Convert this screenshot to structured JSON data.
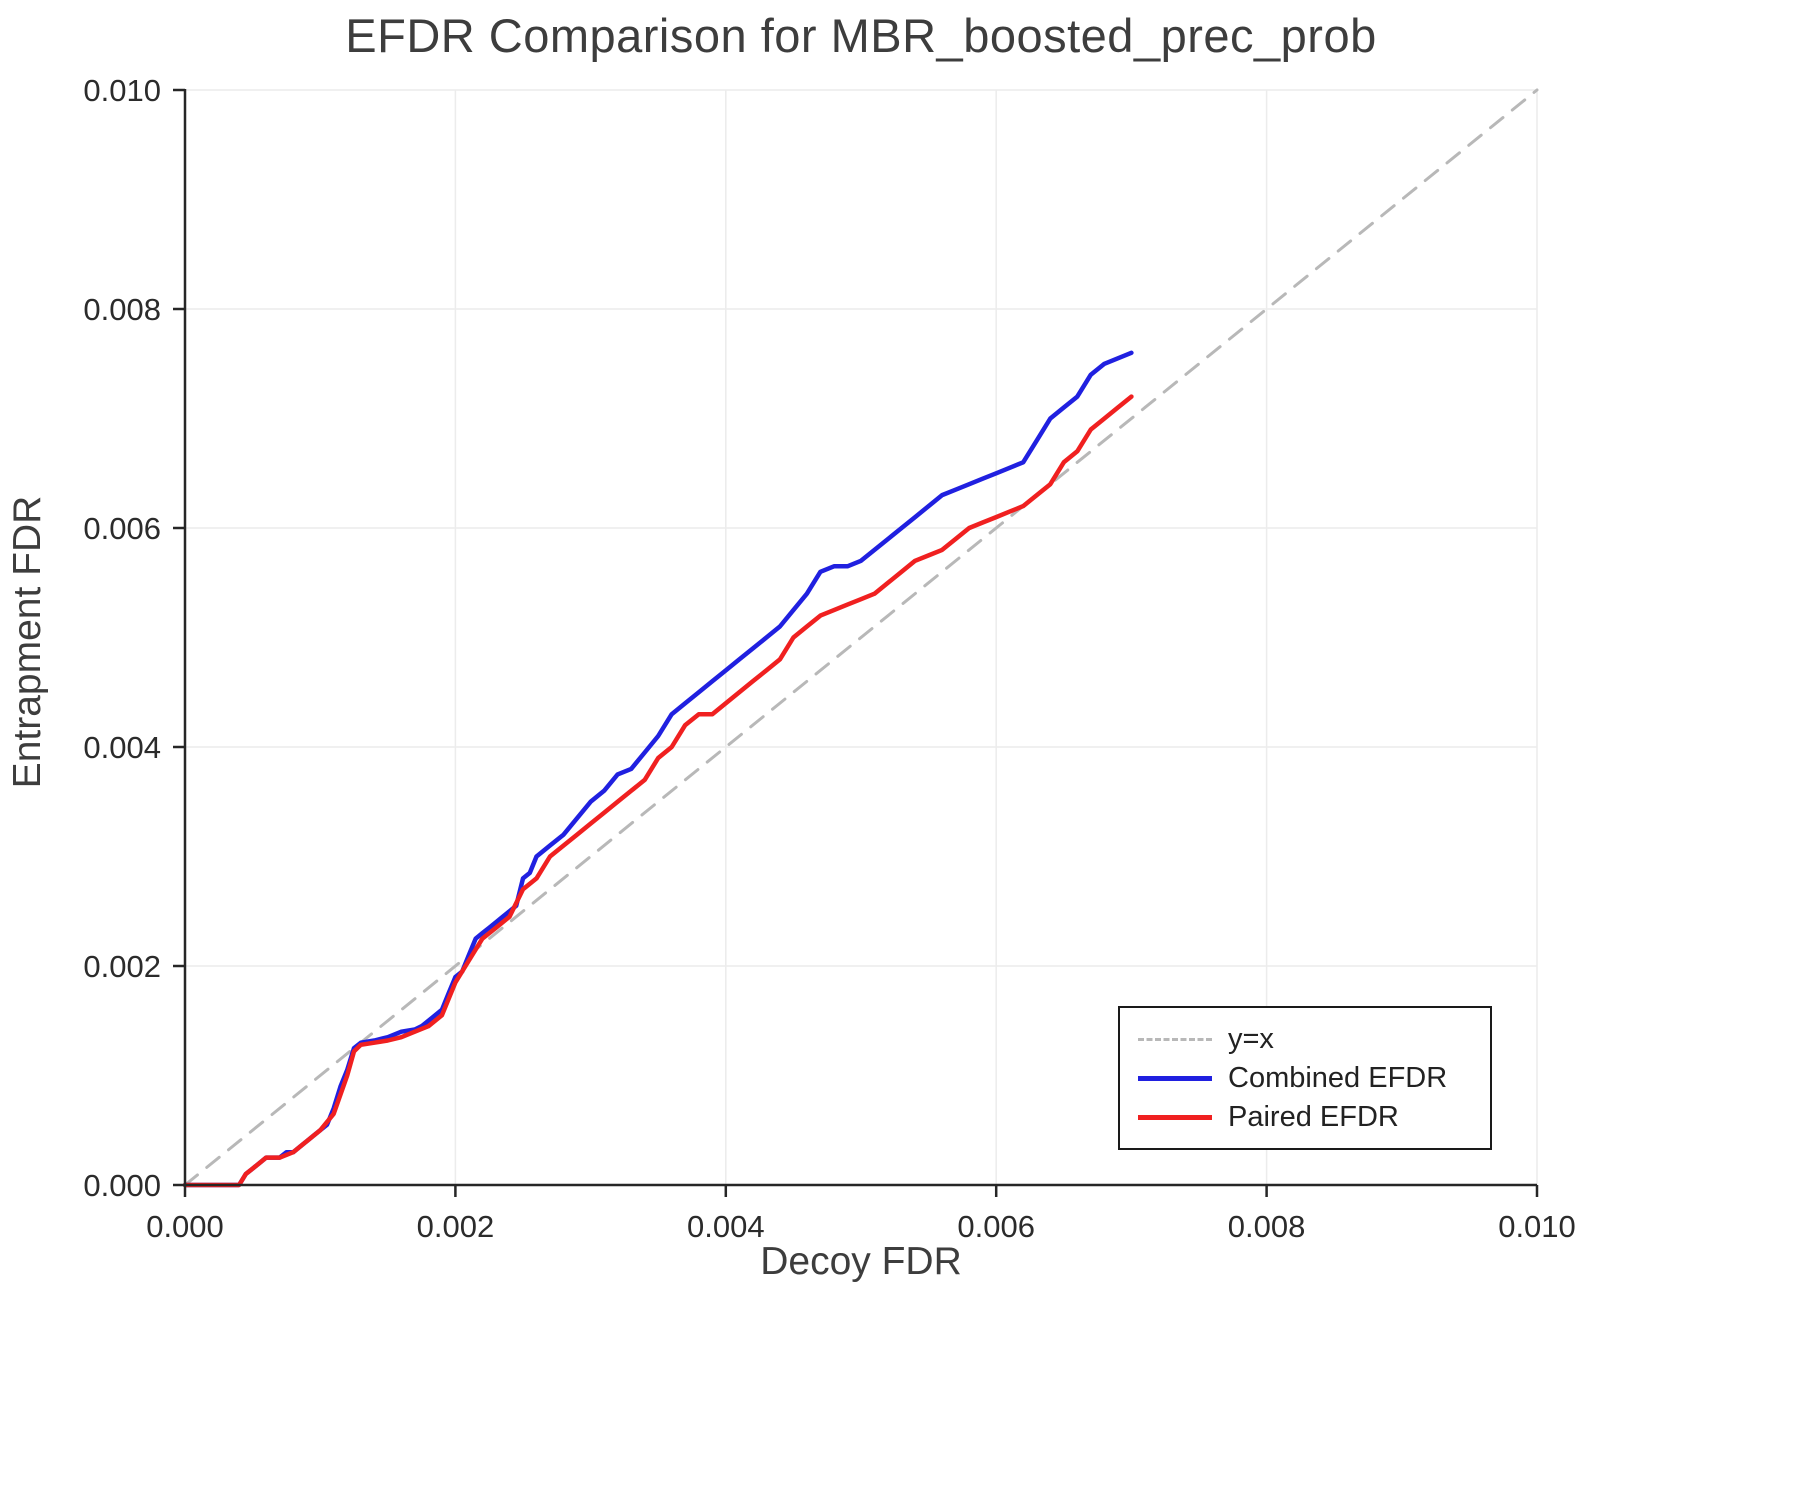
{
  "chart_data": {
    "type": "line",
    "title": "EFDR Comparison for MBR_boosted_prec_prob",
    "xlabel": "Decoy FDR",
    "ylabel": "Entrapment FDR",
    "xlim": [
      0.0,
      0.01
    ],
    "ylim": [
      0.0,
      0.01
    ],
    "grid": true,
    "legend_position": "bottom-right",
    "xticks": {
      "values": [
        0.0,
        0.002,
        0.004,
        0.006,
        0.008,
        0.01
      ],
      "labels": [
        "0.000",
        "0.002",
        "0.004",
        "0.006",
        "0.008",
        "0.010"
      ]
    },
    "yticks": {
      "values": [
        0.0,
        0.002,
        0.004,
        0.006,
        0.008,
        0.01
      ],
      "labels": [
        "0.000",
        "0.002",
        "0.004",
        "0.006",
        "0.008",
        "0.010"
      ]
    },
    "colors": {
      "identity": "#b8b8b8",
      "combined": "#2020e0",
      "paired": "#f02020",
      "grid": "#ececec",
      "axis": "#262626"
    },
    "legend": {
      "entries": [
        {
          "label": "y=x",
          "color": "#b8b8b8",
          "dash": true
        },
        {
          "label": "Combined EFDR",
          "color": "#2020e0",
          "dash": false
        },
        {
          "label": "Paired EFDR",
          "color": "#f02020",
          "dash": false
        }
      ]
    },
    "series": [
      {
        "name": "y=x",
        "color": "#b8b8b8",
        "dash": true,
        "x": [
          0.0,
          0.01
        ],
        "y": [
          0.0,
          0.01
        ]
      },
      {
        "name": "Combined EFDR",
        "color": "#2020e0",
        "dash": false,
        "x": [
          0.0,
          0.0004,
          0.00045,
          0.0005,
          0.00055,
          0.0006,
          0.0007,
          0.00075,
          0.0008,
          0.00085,
          0.0009,
          0.00095,
          0.001,
          0.00105,
          0.0011,
          0.00115,
          0.0012,
          0.00125,
          0.0013,
          0.0014,
          0.0015,
          0.0016,
          0.0017,
          0.00175,
          0.0018,
          0.0019,
          0.00195,
          0.002,
          0.00205,
          0.0021,
          0.00215,
          0.0022,
          0.00225,
          0.0023,
          0.00235,
          0.0024,
          0.00245,
          0.0025,
          0.00255,
          0.0026,
          0.0027,
          0.0028,
          0.0029,
          0.003,
          0.0031,
          0.0032,
          0.0033,
          0.0034,
          0.0035,
          0.0036,
          0.0037,
          0.0038,
          0.0039,
          0.004,
          0.0041,
          0.0042,
          0.0043,
          0.0044,
          0.0045,
          0.0046,
          0.0047,
          0.0048,
          0.0049,
          0.005,
          0.0051,
          0.0052,
          0.0053,
          0.0054,
          0.0055,
          0.0056,
          0.0057,
          0.0058,
          0.0059,
          0.006,
          0.0061,
          0.0062,
          0.0063,
          0.0064,
          0.0065,
          0.0066,
          0.0067,
          0.0068,
          0.0069,
          0.007
        ],
        "y": [
          0.0,
          0.0,
          0.0001,
          0.00015,
          0.0002,
          0.00025,
          0.00025,
          0.0003,
          0.0003,
          0.00035,
          0.0004,
          0.00045,
          0.0005,
          0.00055,
          0.0007,
          0.0009,
          0.00105,
          0.00125,
          0.0013,
          0.00132,
          0.00135,
          0.0014,
          0.00142,
          0.00145,
          0.0015,
          0.0016,
          0.00175,
          0.0019,
          0.00195,
          0.0021,
          0.00225,
          0.0023,
          0.00235,
          0.0024,
          0.00245,
          0.0025,
          0.00255,
          0.0028,
          0.00285,
          0.003,
          0.0031,
          0.0032,
          0.00335,
          0.0035,
          0.0036,
          0.00375,
          0.0038,
          0.00395,
          0.0041,
          0.0043,
          0.0044,
          0.0045,
          0.0046,
          0.0047,
          0.0048,
          0.0049,
          0.005,
          0.0051,
          0.00525,
          0.0054,
          0.0056,
          0.00565,
          0.00565,
          0.0057,
          0.0058,
          0.0059,
          0.006,
          0.0061,
          0.0062,
          0.0063,
          0.00635,
          0.0064,
          0.00645,
          0.0065,
          0.00655,
          0.0066,
          0.0068,
          0.007,
          0.0071,
          0.0072,
          0.0074,
          0.0075,
          0.00755,
          0.0076
        ]
      },
      {
        "name": "Paired EFDR",
        "color": "#f02020",
        "dash": false,
        "x": [
          0.0,
          0.0004,
          0.00045,
          0.0005,
          0.00055,
          0.0006,
          0.0007,
          0.0008,
          0.0009,
          0.001,
          0.0011,
          0.0012,
          0.00125,
          0.0013,
          0.0014,
          0.0015,
          0.0016,
          0.0017,
          0.0018,
          0.0019,
          0.002,
          0.0021,
          0.0022,
          0.0023,
          0.0024,
          0.0025,
          0.0026,
          0.0027,
          0.0028,
          0.0029,
          0.003,
          0.0031,
          0.0032,
          0.0033,
          0.0034,
          0.0035,
          0.0036,
          0.0037,
          0.0038,
          0.0039,
          0.004,
          0.0041,
          0.0042,
          0.0043,
          0.0044,
          0.0045,
          0.0046,
          0.0047,
          0.0048,
          0.0049,
          0.005,
          0.0051,
          0.0052,
          0.0053,
          0.0054,
          0.0055,
          0.0056,
          0.0057,
          0.0058,
          0.0059,
          0.006,
          0.0061,
          0.0062,
          0.0063,
          0.0064,
          0.0065,
          0.0066,
          0.0067,
          0.0068,
          0.0069,
          0.007
        ],
        "y": [
          0.0,
          0.0,
          0.0001,
          0.00015,
          0.0002,
          0.00025,
          0.00025,
          0.0003,
          0.0004,
          0.0005,
          0.00065,
          0.001,
          0.00122,
          0.00128,
          0.0013,
          0.00132,
          0.00135,
          0.0014,
          0.00145,
          0.00155,
          0.00185,
          0.00205,
          0.00225,
          0.00235,
          0.00245,
          0.0027,
          0.0028,
          0.003,
          0.0031,
          0.0032,
          0.0033,
          0.0034,
          0.0035,
          0.0036,
          0.0037,
          0.0039,
          0.004,
          0.0042,
          0.0043,
          0.0043,
          0.0044,
          0.0045,
          0.0046,
          0.0047,
          0.0048,
          0.005,
          0.0051,
          0.0052,
          0.00525,
          0.0053,
          0.00535,
          0.0054,
          0.0055,
          0.0056,
          0.0057,
          0.00575,
          0.0058,
          0.0059,
          0.006,
          0.00605,
          0.0061,
          0.00615,
          0.0062,
          0.0063,
          0.0064,
          0.0066,
          0.0067,
          0.0069,
          0.007,
          0.0071,
          0.0072
        ]
      }
    ]
  }
}
